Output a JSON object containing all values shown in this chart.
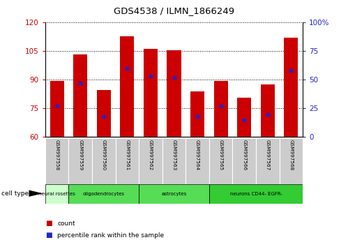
{
  "title": "GDS4538 / ILMN_1866249",
  "samples": [
    "GSM997558",
    "GSM997559",
    "GSM997560",
    "GSM997561",
    "GSM997562",
    "GSM997563",
    "GSM997564",
    "GSM997565",
    "GSM997566",
    "GSM997567",
    "GSM997568"
  ],
  "counts": [
    89.5,
    103.0,
    84.5,
    112.5,
    106.0,
    105.5,
    84.0,
    89.5,
    80.5,
    87.5,
    112.0
  ],
  "percentile_ranks": [
    27,
    47,
    18,
    60,
    53,
    52,
    18,
    27,
    15,
    20,
    58
  ],
  "ylim_left": [
    60,
    120
  ],
  "ylim_right": [
    0,
    100
  ],
  "yticks_left": [
    60,
    75,
    90,
    105,
    120
  ],
  "yticks_right": [
    0,
    25,
    50,
    75,
    100
  ],
  "bar_color": "#CC0000",
  "marker_color": "#2222CC",
  "xlabel_color": "#CC0000",
  "ylabel_right_color": "#2222CC",
  "tick_label_bg": "#CCCCCC",
  "cell_types": [
    {
      "label": "neural rosettes",
      "start": 0,
      "end": 1,
      "color": "#CCFFCC"
    },
    {
      "label": "oligodendrocytes",
      "start": 1,
      "end": 4,
      "color": "#55DD55"
    },
    {
      "label": "astrocytes",
      "start": 4,
      "end": 7,
      "color": "#55DD55"
    },
    {
      "label": "neurons CD44- EGFR-",
      "start": 7,
      "end": 11,
      "color": "#33CC33"
    }
  ]
}
